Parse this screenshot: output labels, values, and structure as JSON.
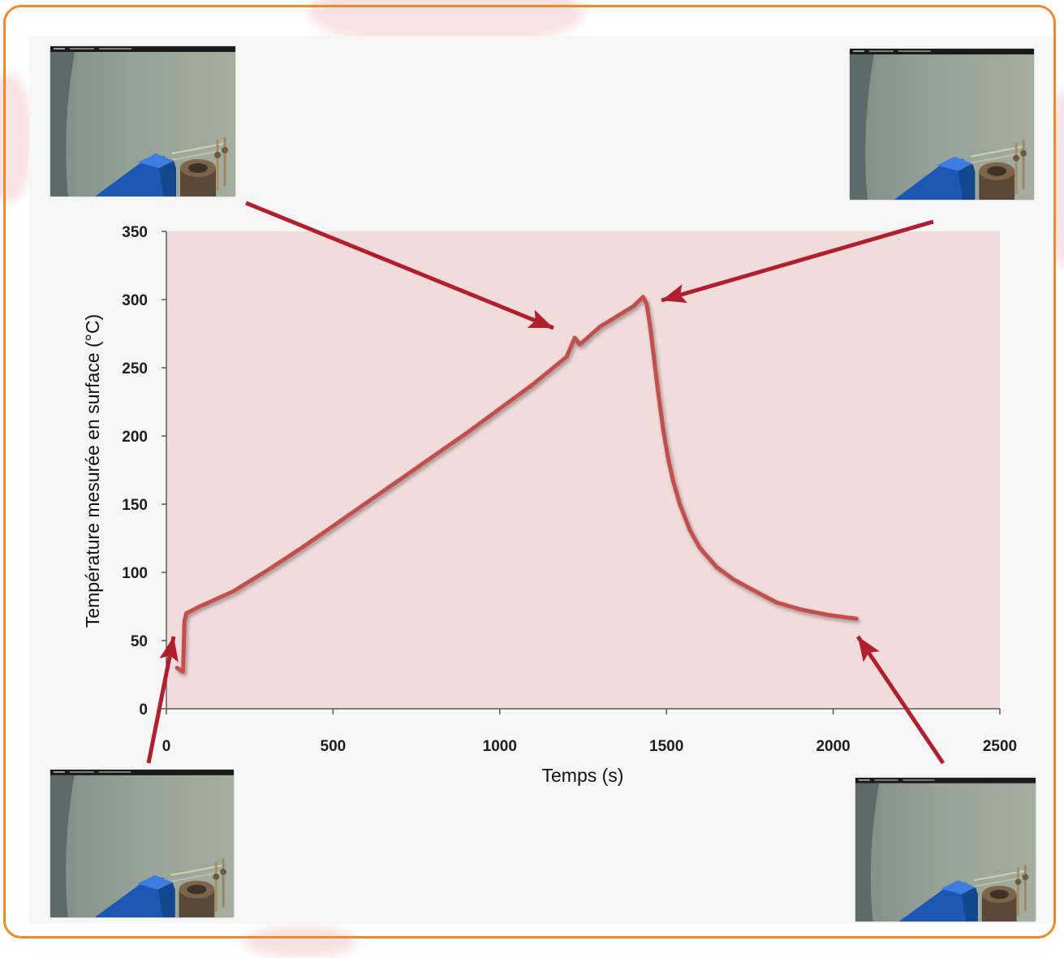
{
  "colors": {
    "frame": "#ee8a2c",
    "panel": "#f6f6f6",
    "plot_background": "#f2dcdb",
    "line": "#c0504d",
    "arrow": "#b11f2e",
    "axis": "#5a5a5a"
  },
  "chart_data": {
    "type": "line",
    "title": "",
    "xlabel": "Temps (s)",
    "ylabel": "Température mesurée en surface (°C)",
    "xlim": [
      0,
      2500
    ],
    "ylim": [
      0,
      350
    ],
    "xticks": [
      "0",
      "500",
      "1000",
      "1500",
      "2000",
      "2500"
    ],
    "yticks": [
      "0",
      "50",
      "100",
      "150",
      "200",
      "250",
      "300",
      "350"
    ],
    "grid": false,
    "legend": "none",
    "series": [
      {
        "x": [
          32,
          50,
          52,
          54,
          60,
          100,
          200,
          300,
          400,
          500,
          600,
          700,
          800,
          900,
          1000,
          1100,
          1200,
          1225,
          1240,
          1300,
          1400,
          1430,
          1440,
          1450,
          1460,
          1475,
          1490,
          1505,
          1520,
          1540,
          1570,
          1600,
          1650,
          1700,
          1760,
          1830,
          1900,
          1980,
          2070
        ],
        "y": [
          30,
          27,
          45,
          64,
          70,
          75,
          86,
          101,
          117,
          134,
          151,
          168,
          185,
          202,
          220,
          238,
          258,
          272,
          267,
          280,
          295,
          302,
          297,
          282,
          262,
          232,
          205,
          183,
          167,
          150,
          131,
          118,
          104,
          95,
          87,
          78,
          73,
          69,
          66
        ]
      }
    ]
  }
}
